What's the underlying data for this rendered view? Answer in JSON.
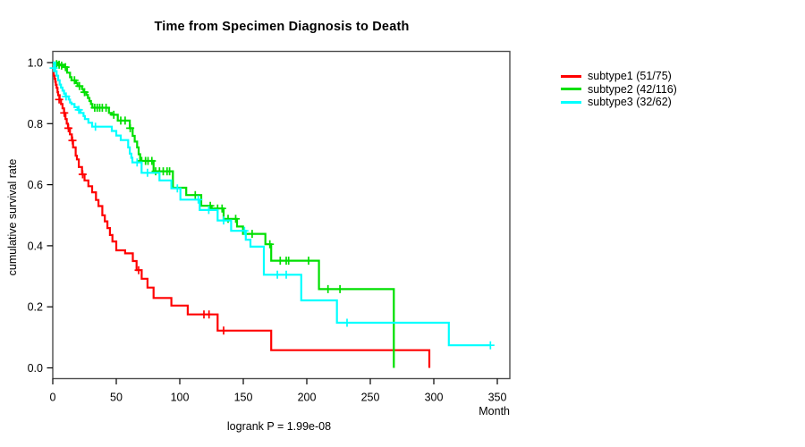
{
  "title": "Time from Specimen Diagnosis to Death",
  "footer": {
    "logrank_label": "logrank P = 1.99e-08"
  },
  "axes": {
    "y_label": "cumulative survival rate",
    "x_label": "Month",
    "x_ticks": [
      {
        "label": "0",
        "month": 0
      },
      {
        "label": "50",
        "month": 50
      },
      {
        "label": "100",
        "month": 100
      },
      {
        "label": "150",
        "month": 150
      },
      {
        "label": "200",
        "month": 200
      },
      {
        "label": "250",
        "month": 250
      },
      {
        "label": "300",
        "month": 300
      },
      {
        "label": "350",
        "month": 350
      }
    ],
    "y_ticks": [
      {
        "label": "0.0",
        "rate": 0.0
      },
      {
        "label": "0.2",
        "rate": 0.2
      },
      {
        "label": "0.4",
        "rate": 0.4
      },
      {
        "label": "0.6",
        "rate": 0.6
      },
      {
        "label": "0.8",
        "rate": 0.8
      },
      {
        "label": "1.0",
        "rate": 1.0
      }
    ]
  },
  "legend": {
    "items": [
      {
        "label": "subtype1 (51/75)",
        "color": "#ff0000"
      },
      {
        "label": "subtype2 (42/116)",
        "color": "#00df00"
      },
      {
        "label": "subtype3 (32/62)",
        "color": "#00ffff"
      }
    ]
  },
  "chart_data": {
    "type": "line",
    "subtype": "kaplan-meier-step",
    "title": "Time from Specimen Diagnosis to Death",
    "xlabel": "Month",
    "ylabel": "cumulative survival rate",
    "xlim": [
      0,
      360
    ],
    "ylim": [
      0,
      1
    ],
    "grid": false,
    "legend_position": "right-outside",
    "annotation": "logrank P = 1.99e-08",
    "series": [
      {
        "name": "subtype1 (51/75)",
        "color": "#ff0000",
        "events_total": "51/75",
        "steps": [
          [
            0,
            1.0
          ],
          [
            0.7,
            0.957
          ],
          [
            1.4,
            0.947
          ],
          [
            2,
            0.937
          ],
          [
            2.4,
            0.927
          ],
          [
            3,
            0.917
          ],
          [
            3.7,
            0.903
          ],
          [
            4.2,
            0.893
          ],
          [
            5.4,
            0.879
          ],
          [
            6.5,
            0.864
          ],
          [
            7.7,
            0.85
          ],
          [
            8.9,
            0.835
          ],
          [
            10,
            0.815
          ],
          [
            11,
            0.8
          ],
          [
            12,
            0.785
          ],
          [
            13.5,
            0.765
          ],
          [
            15,
            0.745
          ],
          [
            16,
            0.722
          ],
          [
            18,
            0.695
          ],
          [
            19,
            0.683
          ],
          [
            20.5,
            0.658
          ],
          [
            23,
            0.634
          ],
          [
            25,
            0.614
          ],
          [
            28,
            0.595
          ],
          [
            31,
            0.575
          ],
          [
            34,
            0.55
          ],
          [
            36,
            0.53
          ],
          [
            39,
            0.5
          ],
          [
            41,
            0.48
          ],
          [
            43,
            0.458
          ],
          [
            45,
            0.435
          ],
          [
            47,
            0.414
          ],
          [
            50,
            0.385
          ],
          [
            57,
            0.375
          ],
          [
            63,
            0.35
          ],
          [
            66,
            0.32
          ],
          [
            70,
            0.292
          ],
          [
            74.6,
            0.263
          ],
          [
            79.4,
            0.229
          ],
          [
            93.4,
            0.204
          ],
          [
            106.3,
            0.175
          ],
          [
            129.8,
            0.122
          ],
          [
            172,
            0.058
          ],
          [
            296.5,
            0.0
          ]
        ],
        "censors": [
          [
            5,
            0.879
          ],
          [
            9,
            0.835
          ],
          [
            12.3,
            0.785
          ],
          [
            15.5,
            0.745
          ],
          [
            23.5,
            0.634
          ],
          [
            67.6,
            0.32
          ],
          [
            119,
            0.175
          ],
          [
            123,
            0.175
          ],
          [
            134.5,
            0.122
          ]
        ]
      },
      {
        "name": "subtype2 (42/116)",
        "color": "#00df00",
        "events_total": "42/116",
        "steps": [
          [
            0,
            1.0
          ],
          [
            4,
            0.993
          ],
          [
            9,
            0.985
          ],
          [
            11.3,
            0.967
          ],
          [
            13.6,
            0.952
          ],
          [
            14.8,
            0.942
          ],
          [
            18.3,
            0.933
          ],
          [
            19.5,
            0.923
          ],
          [
            23,
            0.913
          ],
          [
            24.2,
            0.903
          ],
          [
            26.5,
            0.894
          ],
          [
            27.7,
            0.884
          ],
          [
            28.9,
            0.874
          ],
          [
            30.1,
            0.864
          ],
          [
            31.2,
            0.852
          ],
          [
            44.2,
            0.835
          ],
          [
            46.5,
            0.829
          ],
          [
            51.2,
            0.81
          ],
          [
            60.6,
            0.785
          ],
          [
            62.9,
            0.76
          ],
          [
            64.5,
            0.741
          ],
          [
            66.4,
            0.722
          ],
          [
            67.6,
            0.7
          ],
          [
            68.8,
            0.678
          ],
          [
            79.4,
            0.644
          ],
          [
            94.6,
            0.59
          ],
          [
            105.1,
            0.566
          ],
          [
            116.9,
            0.531
          ],
          [
            125.1,
            0.522
          ],
          [
            134.5,
            0.488
          ],
          [
            145.1,
            0.463
          ],
          [
            149.8,
            0.439
          ],
          [
            167.4,
            0.405
          ],
          [
            172,
            0.351
          ],
          [
            209.6,
            0.258
          ],
          [
            268.5,
            0.0
          ]
        ],
        "censors": [
          [
            3,
            0.995
          ],
          [
            5,
            0.993
          ],
          [
            7,
            0.99
          ],
          [
            10,
            0.985
          ],
          [
            17.1,
            0.942
          ],
          [
            21,
            0.923
          ],
          [
            25,
            0.903
          ],
          [
            33,
            0.852
          ],
          [
            35,
            0.852
          ],
          [
            37,
            0.852
          ],
          [
            39,
            0.852
          ],
          [
            42,
            0.852
          ],
          [
            48,
            0.829
          ],
          [
            53.5,
            0.81
          ],
          [
            57,
            0.81
          ],
          [
            61,
            0.785
          ],
          [
            70,
            0.678
          ],
          [
            73,
            0.678
          ],
          [
            75,
            0.678
          ],
          [
            78,
            0.678
          ],
          [
            81,
            0.644
          ],
          [
            84,
            0.644
          ],
          [
            87,
            0.644
          ],
          [
            90,
            0.644
          ],
          [
            92,
            0.644
          ],
          [
            112.2,
            0.566
          ],
          [
            124,
            0.531
          ],
          [
            129.8,
            0.522
          ],
          [
            133.3,
            0.522
          ],
          [
            138,
            0.488
          ],
          [
            144,
            0.488
          ],
          [
            157,
            0.439
          ],
          [
            170.9,
            0.405
          ],
          [
            179.1,
            0.351
          ],
          [
            183.8,
            0.351
          ],
          [
            185.7,
            0.351
          ],
          [
            201.4,
            0.351
          ],
          [
            216.7,
            0.258
          ],
          [
            226.1,
            0.258
          ]
        ]
      },
      {
        "name": "subtype3 (32/62)",
        "color": "#00ffff",
        "events_total": "32/62",
        "steps": [
          [
            0,
            1.0
          ],
          [
            1.9,
            0.972
          ],
          [
            3,
            0.957
          ],
          [
            4.2,
            0.942
          ],
          [
            5.4,
            0.928
          ],
          [
            6.5,
            0.918
          ],
          [
            7.7,
            0.908
          ],
          [
            8.9,
            0.898
          ],
          [
            10.1,
            0.889
          ],
          [
            12.5,
            0.879
          ],
          [
            13.6,
            0.869
          ],
          [
            14.8,
            0.864
          ],
          [
            17.1,
            0.854
          ],
          [
            19.5,
            0.845
          ],
          [
            21.8,
            0.835
          ],
          [
            24.2,
            0.825
          ],
          [
            25.3,
            0.815
          ],
          [
            28,
            0.803
          ],
          [
            31,
            0.79
          ],
          [
            46.5,
            0.776
          ],
          [
            50,
            0.761
          ],
          [
            53.5,
            0.746
          ],
          [
            59.4,
            0.722
          ],
          [
            60.6,
            0.702
          ],
          [
            61.8,
            0.688
          ],
          [
            62.7,
            0.673
          ],
          [
            69.9,
            0.639
          ],
          [
            84,
            0.614
          ],
          [
            93.4,
            0.588
          ],
          [
            100.5,
            0.551
          ],
          [
            115.7,
            0.517
          ],
          [
            129.8,
            0.483
          ],
          [
            140.4,
            0.449
          ],
          [
            152,
            0.42
          ],
          [
            155.6,
            0.397
          ],
          [
            166.2,
            0.305
          ],
          [
            195.6,
            0.221
          ],
          [
            223.7,
            0.148
          ],
          [
            311.8,
            0.074
          ]
        ],
        "end_month": 344.6,
        "censors": [
          [
            0.7,
            0.982
          ],
          [
            10.5,
            0.889
          ],
          [
            20.5,
            0.845
          ],
          [
            33.6,
            0.79
          ],
          [
            66.4,
            0.673
          ],
          [
            74.6,
            0.639
          ],
          [
            98.1,
            0.588
          ],
          [
            114.6,
            0.551
          ],
          [
            122.8,
            0.517
          ],
          [
            134.5,
            0.483
          ],
          [
            150.9,
            0.449
          ],
          [
            176.8,
            0.305
          ],
          [
            183.8,
            0.305
          ],
          [
            231.7,
            0.148
          ],
          [
            344.6,
            0.074
          ]
        ]
      }
    ]
  }
}
